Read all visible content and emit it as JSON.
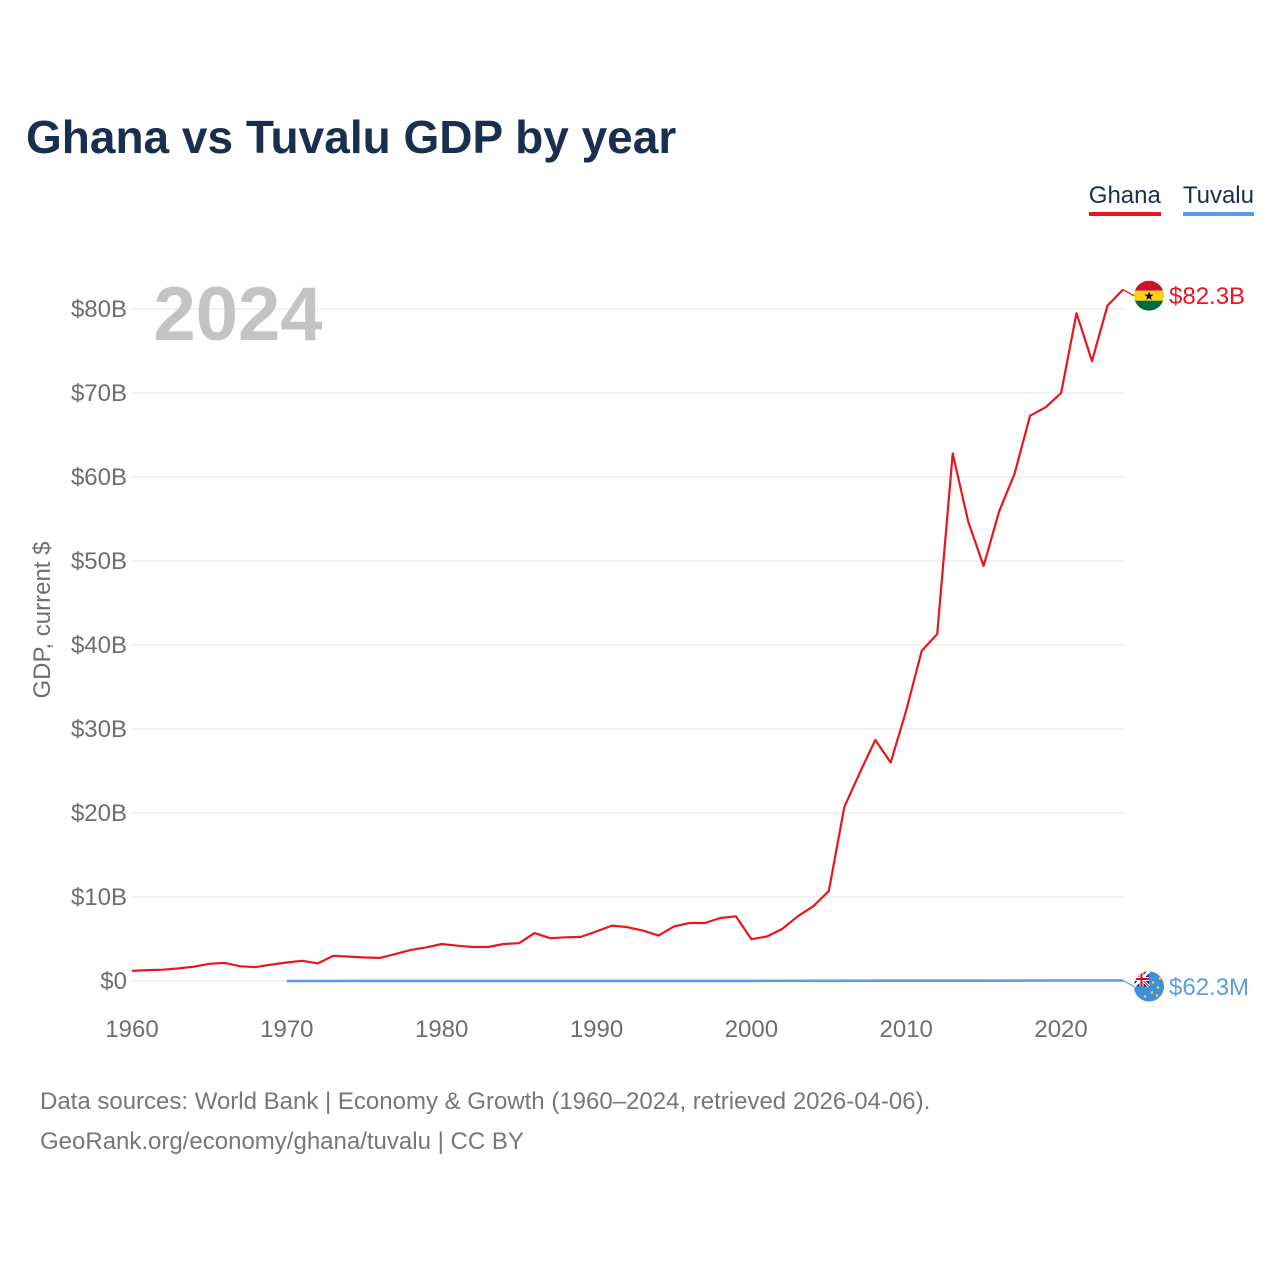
{
  "title": "Ghana vs Tuvalu GDP by year",
  "legend": {
    "ghana": "Ghana",
    "tuvalu": "Tuvalu"
  },
  "colors": {
    "ghana": "#e8161d",
    "tuvalu": "#5b9de3",
    "title": "#1a2e4f"
  },
  "chart_data": {
    "type": "line",
    "ylabel": "GDP, current $",
    "xlabel": "",
    "year_label": "2024",
    "xlim": [
      1960,
      2024
    ],
    "ylim": [
      0,
      80
    ],
    "y_unit": "billions USD",
    "x_ticks": [
      "1960",
      "1970",
      "1980",
      "1990",
      "2000",
      "2010",
      "2020"
    ],
    "x_tick_values": [
      1960,
      1970,
      1980,
      1990,
      2000,
      2010,
      2020
    ],
    "y_ticks": [
      "$0",
      "$10B",
      "$20B",
      "$30B",
      "$40B",
      "$50B",
      "$60B",
      "$70B",
      "$80B"
    ],
    "y_tick_values": [
      0,
      10,
      20,
      30,
      40,
      50,
      60,
      70,
      80
    ],
    "grid": true,
    "legend_position": "top-right",
    "series": [
      {
        "name": "Ghana",
        "end_label": "$82.3B",
        "flag_icon": "ghana-flag-icon",
        "x": [
          1960,
          1961,
          1962,
          1963,
          1964,
          1965,
          1966,
          1967,
          1968,
          1969,
          1970,
          1971,
          1972,
          1973,
          1974,
          1975,
          1976,
          1977,
          1978,
          1979,
          1980,
          1981,
          1982,
          1983,
          1984,
          1985,
          1986,
          1987,
          1988,
          1989,
          1990,
          1991,
          1992,
          1993,
          1994,
          1995,
          1996,
          1997,
          1998,
          1999,
          2000,
          2001,
          2002,
          2003,
          2004,
          2005,
          2006,
          2007,
          2008,
          2009,
          2010,
          2011,
          2012,
          2013,
          2014,
          2015,
          2016,
          2017,
          2018,
          2019,
          2020,
          2021,
          2022,
          2023,
          2024
        ],
        "values": [
          1.2,
          1.3,
          1.35,
          1.5,
          1.7,
          2.05,
          2.15,
          1.75,
          1.65,
          1.95,
          2.2,
          2.4,
          2.1,
          3.0,
          2.9,
          2.8,
          2.75,
          3.2,
          3.7,
          4.0,
          4.4,
          4.2,
          4.05,
          4.05,
          4.4,
          4.5,
          5.7,
          5.1,
          5.2,
          5.25,
          5.9,
          6.6,
          6.4,
          6.0,
          5.4,
          6.5,
          6.9,
          6.9,
          7.5,
          7.7,
          4.98,
          5.3,
          6.2,
          7.7,
          8.9,
          10.7,
          20.7,
          24.8,
          28.7,
          26.0,
          32.2,
          39.3,
          41.3,
          62.8,
          54.7,
          49.4,
          55.9,
          60.4,
          67.3,
          68.3,
          70.0,
          79.5,
          73.8,
          80.4,
          82.3
        ]
      },
      {
        "name": "Tuvalu",
        "end_label": "$62.3M",
        "flag_icon": "tuvalu-flag-icon",
        "x": [
          1970,
          1975,
          1980,
          1985,
          1990,
          1995,
          2000,
          2005,
          2010,
          2015,
          2020,
          2023,
          2024
        ],
        "values": [
          0.005,
          0.006,
          0.008,
          0.01,
          0.012,
          0.013,
          0.014,
          0.022,
          0.032,
          0.034,
          0.055,
          0.06,
          0.0623
        ]
      }
    ]
  },
  "footer": {
    "line1": "Data sources: World Bank | Economy & Growth (1960–2024, retrieved 2026-04-06).",
    "line2": "GeoRank.org/economy/ghana/tuvalu | CC BY"
  }
}
